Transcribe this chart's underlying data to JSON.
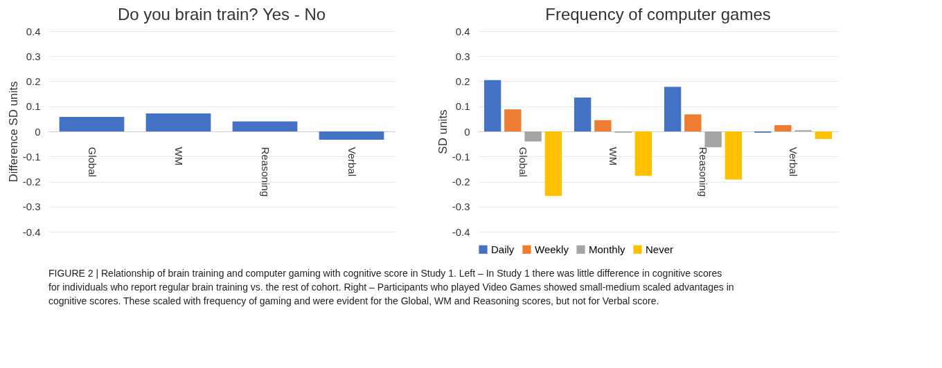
{
  "chart_data": [
    {
      "type": "bar",
      "title": "Do you brain train? Yes - No",
      "ylabel": "Difference SD units",
      "categories": [
        "Global",
        "WM",
        "Reasoning",
        "Verbal"
      ],
      "values": [
        0.058,
        0.072,
        0.04,
        -0.033
      ],
      "color": "#4472c4",
      "ylim": [
        -0.4,
        0.4
      ],
      "yticks": [
        0.4,
        0.3,
        0.2,
        0.1,
        0,
        -0.1,
        -0.2,
        -0.3,
        -0.4
      ],
      "grid": "y",
      "annotations": [
        "FIGURE 2 | Relationship of brain training and computer gaming with cognitive score in Study 1. Left – In Study 1 there was little difference in cognitive scores for individuals who report regular brain training vs. the rest of cohort. Right – Participants who played Video Games showed small-medium scaled advantages in cognitive scores. These scaled with frequency of gaming and were evident for the Global, WM and Reasoning scores, but not for Verbal score."
      ]
    },
    {
      "type": "bar",
      "title": "Frequency of computer games",
      "ylabel": "SD units",
      "categories": [
        "Global",
        "WM",
        "Reasoning",
        "Verbal"
      ],
      "ylim": [
        -0.4,
        0.4
      ],
      "yticks": [
        0.4,
        0.3,
        0.2,
        0.1,
        0,
        -0.1,
        -0.2,
        -0.3,
        -0.4
      ],
      "grid": "y",
      "legend": "bottom",
      "series": [
        {
          "name": "Daily",
          "color": "#4472c4",
          "values": [
            0.205,
            0.135,
            0.178,
            -0.005
          ]
        },
        {
          "name": "Weekly",
          "color": "#ed7d31",
          "values": [
            0.088,
            0.045,
            0.068,
            0.025
          ]
        },
        {
          "name": "Monthly",
          "color": "#a5a5a5",
          "values": [
            -0.04,
            -0.005,
            -0.063,
            0.005
          ]
        },
        {
          "name": "Never",
          "color": "#ffc000",
          "values": [
            -0.257,
            -0.177,
            -0.192,
            -0.03
          ]
        }
      ]
    }
  ]
}
